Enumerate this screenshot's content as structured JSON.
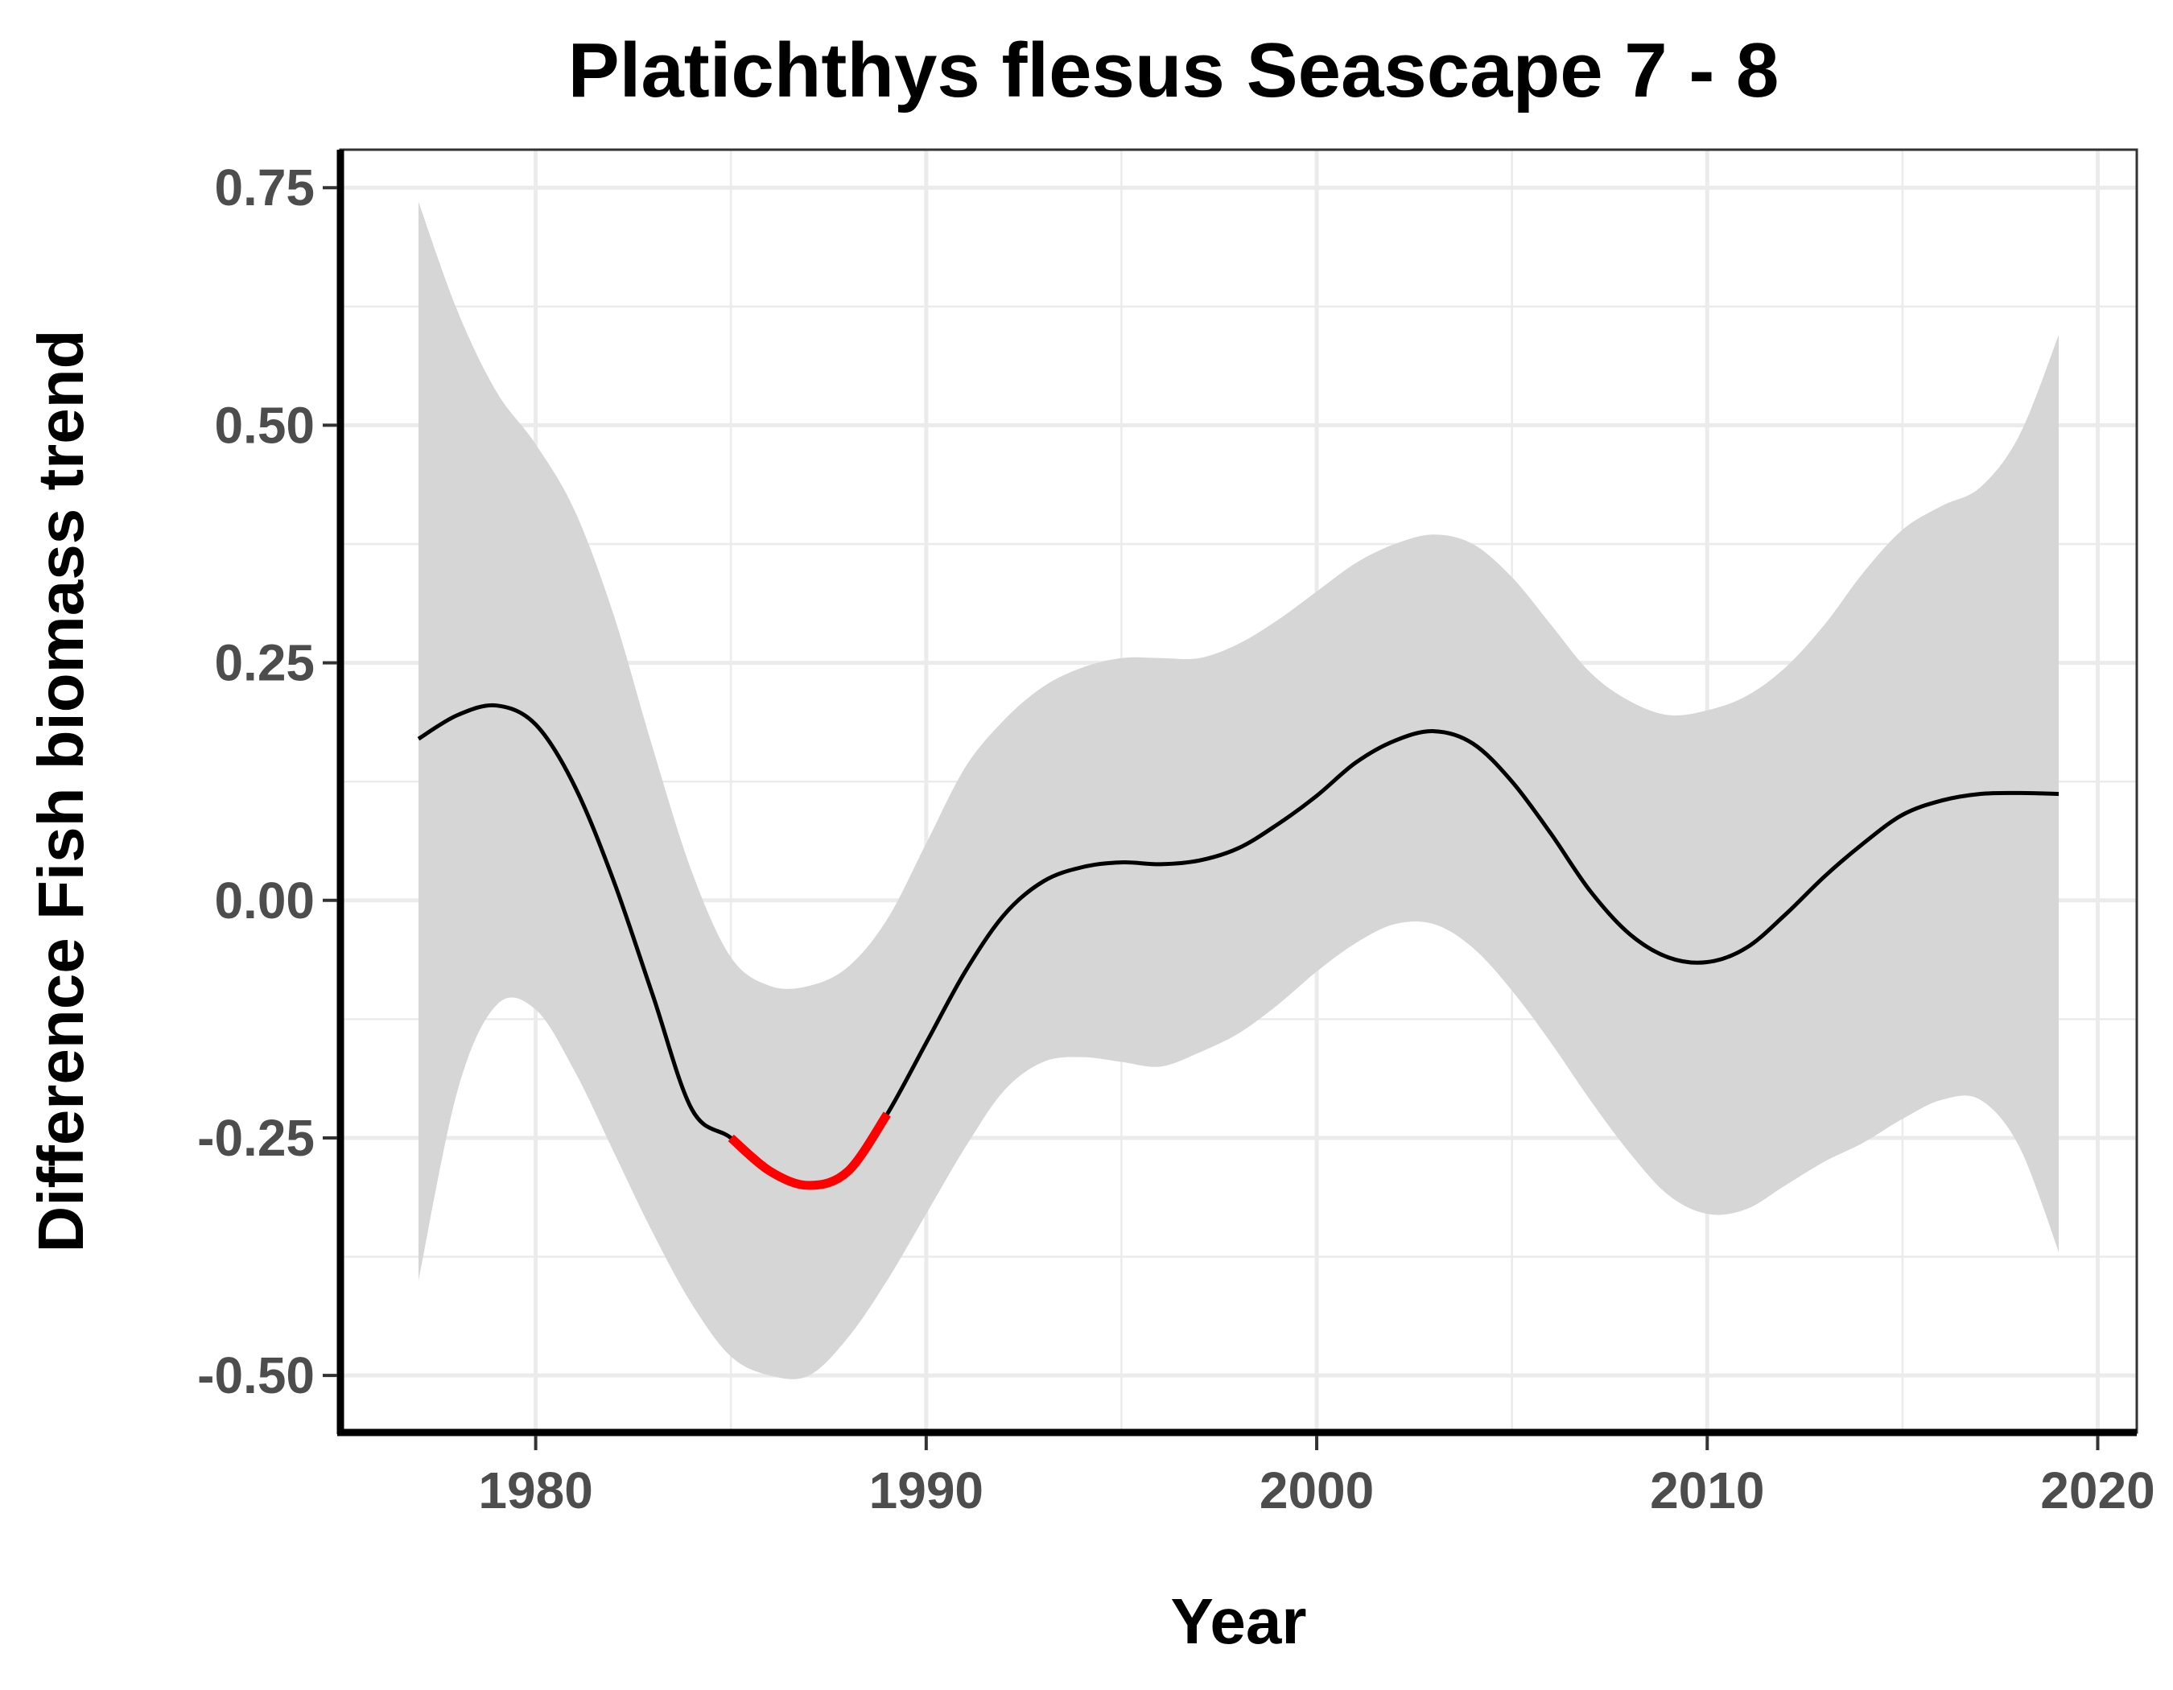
{
  "chart_data": {
    "type": "line",
    "title": "Platichthys flesus Seascape 7 - 8",
    "xlabel": "Year",
    "ylabel": "Difference Fish biomass trend",
    "xlim": [
      1975,
      2021
    ],
    "ylim": [
      -0.56,
      0.79
    ],
    "x_ticks": [
      1980,
      1990,
      2000,
      2010,
      2020
    ],
    "x_tick_labels": [
      "1980",
      "1990",
      "2000",
      "2010",
      "2020"
    ],
    "y_ticks": [
      -0.5,
      -0.25,
      0,
      0.25,
      0.5,
      0.75
    ],
    "y_tick_labels": [
      "-0.50",
      "-0.25",
      "0.00",
      "0.25",
      "0.50",
      "0.75"
    ],
    "grid": true,
    "legend": "none",
    "series": [
      {
        "x": [
          1977,
          1978,
          1979,
          1980,
          1981,
          1982,
          1983,
          1984,
          1985,
          1986,
          1987,
          1988,
          1989,
          1990,
          1991,
          1992,
          1993,
          1994,
          1995,
          1996,
          1997,
          1998,
          1999,
          2000,
          2001,
          2002,
          2003,
          2004,
          2005,
          2006,
          2007,
          2008,
          2009,
          2010,
          2011,
          2012,
          2013,
          2014,
          2015,
          2016,
          2017,
          2018,
          2019
        ],
        "y": [
          0.17,
          0.195,
          0.205,
          0.185,
          0.12,
          0.02,
          -0.1,
          -0.22,
          -0.25,
          -0.285,
          -0.3,
          -0.285,
          -0.225,
          -0.15,
          -0.075,
          -0.015,
          0.02,
          0.035,
          0.04,
          0.038,
          0.042,
          0.055,
          0.08,
          0.11,
          0.145,
          0.168,
          0.178,
          0.165,
          0.125,
          0.07,
          0.01,
          -0.035,
          -0.06,
          -0.065,
          -0.05,
          -0.015,
          0.025,
          0.06,
          0.09,
          0.105,
          0.112,
          0.113,
          0.112
        ],
        "lower": [
          -0.4,
          -0.2,
          -0.11,
          -0.115,
          -0.18,
          -0.265,
          -0.35,
          -0.425,
          -0.48,
          -0.5,
          -0.5,
          -0.46,
          -0.4,
          -0.33,
          -0.26,
          -0.2,
          -0.17,
          -0.165,
          -0.17,
          -0.175,
          -0.16,
          -0.14,
          -0.11,
          -0.075,
          -0.045,
          -0.025,
          -0.025,
          -0.05,
          -0.095,
          -0.15,
          -0.21,
          -0.265,
          -0.31,
          -0.33,
          -0.325,
          -0.3,
          -0.275,
          -0.255,
          -0.23,
          -0.21,
          -0.21,
          -0.26,
          -0.37
        ],
        "upper": [
          0.735,
          0.62,
          0.535,
          0.48,
          0.41,
          0.3,
          0.16,
          0.03,
          -0.06,
          -0.09,
          -0.09,
          -0.07,
          -0.02,
          0.06,
          0.14,
          0.19,
          0.225,
          0.245,
          0.255,
          0.255,
          0.255,
          0.27,
          0.295,
          0.325,
          0.355,
          0.375,
          0.385,
          0.375,
          0.34,
          0.29,
          0.24,
          0.21,
          0.195,
          0.2,
          0.215,
          0.245,
          0.29,
          0.345,
          0.39,
          0.415,
          0.435,
          0.49,
          0.595
        ]
      }
    ],
    "highlight": {
      "x_from": 1985,
      "x_to": 1989,
      "color": "#ff0000"
    }
  }
}
